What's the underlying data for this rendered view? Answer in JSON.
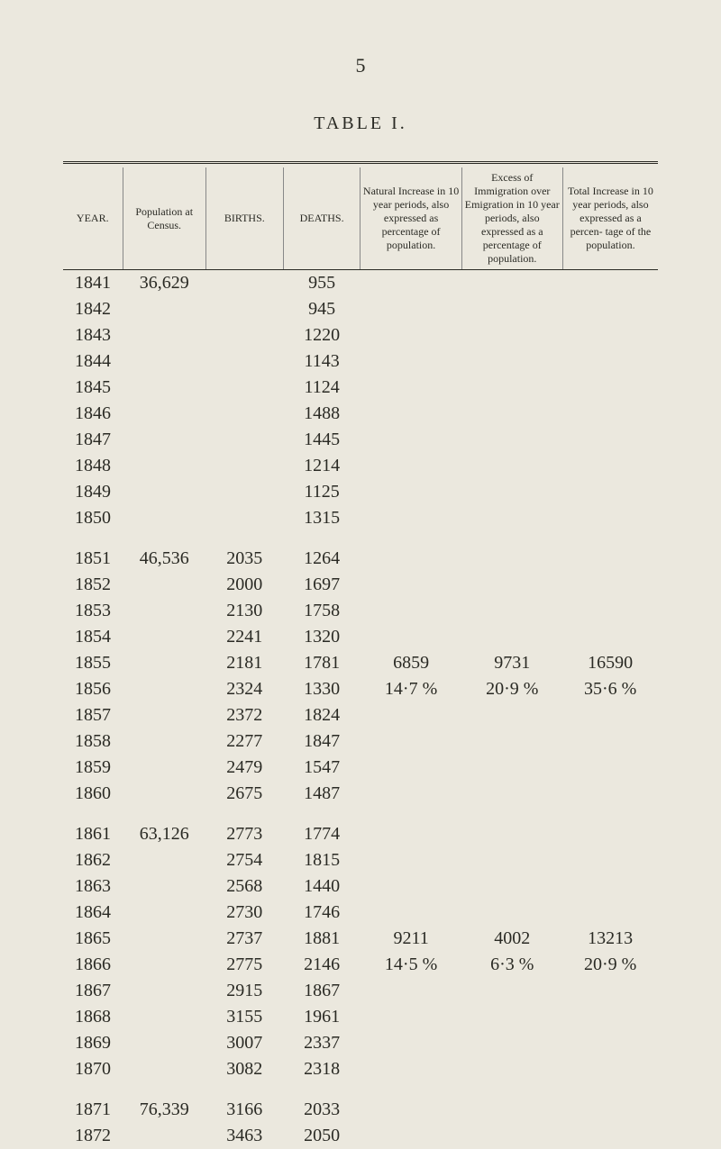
{
  "page_number": "5",
  "table_title": "TABLE I.",
  "headers": {
    "year": "YEAR.",
    "population": "Population at Census.",
    "births": "BIRTHS.",
    "deaths": "DEATHS.",
    "natural": "Natural Increase in 10 year periods, also expressed as percentage of population.",
    "excess": "Excess of Immigration over Emigration in 10 year periods, also expressed as a percentage of population.",
    "total": "Total Increase in 10 year periods, also expressed as a percen- tage of the population."
  },
  "blocks": [
    {
      "rows": [
        {
          "year": "1841",
          "pop": "36,629",
          "births": "",
          "deaths": "955"
        },
        {
          "year": "1842",
          "pop": "",
          "births": "",
          "deaths": "945"
        },
        {
          "year": "1843",
          "pop": "",
          "births": "",
          "deaths": "1220"
        },
        {
          "year": "1844",
          "pop": "",
          "births": "",
          "deaths": "1143"
        },
        {
          "year": "1845",
          "pop": "",
          "births": "",
          "deaths": "1124"
        },
        {
          "year": "1846",
          "pop": "",
          "births": "",
          "deaths": "1488"
        },
        {
          "year": "1847",
          "pop": "",
          "births": "",
          "deaths": "1445"
        },
        {
          "year": "1848",
          "pop": "",
          "births": "",
          "deaths": "1214"
        },
        {
          "year": "1849",
          "pop": "",
          "births": "",
          "deaths": "1125"
        },
        {
          "year": "1850",
          "pop": "",
          "births": "",
          "deaths": "1315"
        }
      ],
      "natural_val": "",
      "natural_pct": "",
      "excess_val": "",
      "excess_pct": "",
      "total_val": "",
      "total_pct": ""
    },
    {
      "rows": [
        {
          "year": "1851",
          "pop": "46,536",
          "births": "2035",
          "deaths": "1264"
        },
        {
          "year": "1852",
          "pop": "",
          "births": "2000",
          "deaths": "1697"
        },
        {
          "year": "1853",
          "pop": "",
          "births": "2130",
          "deaths": "1758"
        },
        {
          "year": "1854",
          "pop": "",
          "births": "2241",
          "deaths": "1320"
        },
        {
          "year": "1855",
          "pop": "",
          "births": "2181",
          "deaths": "1781"
        },
        {
          "year": "1856",
          "pop": "",
          "births": "2324",
          "deaths": "1330"
        },
        {
          "year": "1857",
          "pop": "",
          "births": "2372",
          "deaths": "1824"
        },
        {
          "year": "1858",
          "pop": "",
          "births": "2277",
          "deaths": "1847"
        },
        {
          "year": "1859",
          "pop": "",
          "births": "2479",
          "deaths": "1547"
        },
        {
          "year": "1860",
          "pop": "",
          "births": "2675",
          "deaths": "1487"
        }
      ],
      "natural_val": "6859",
      "natural_pct": "14·7 %",
      "excess_val": "9731",
      "excess_pct": "20·9 %",
      "total_val": "16590",
      "total_pct": "35·6 %"
    },
    {
      "rows": [
        {
          "year": "1861",
          "pop": "63,126",
          "births": "2773",
          "deaths": "1774"
        },
        {
          "year": "1862",
          "pop": "",
          "births": "2754",
          "deaths": "1815"
        },
        {
          "year": "1863",
          "pop": "",
          "births": "2568",
          "deaths": "1440"
        },
        {
          "year": "1864",
          "pop": "",
          "births": "2730",
          "deaths": "1746"
        },
        {
          "year": "1865",
          "pop": "",
          "births": "2737",
          "deaths": "1881"
        },
        {
          "year": "1866",
          "pop": "",
          "births": "2775",
          "deaths": "2146"
        },
        {
          "year": "1867",
          "pop": "",
          "births": "2915",
          "deaths": "1867"
        },
        {
          "year": "1868",
          "pop": "",
          "births": "3155",
          "deaths": "1961"
        },
        {
          "year": "1869",
          "pop": "",
          "births": "3007",
          "deaths": "2337"
        },
        {
          "year": "1870",
          "pop": "",
          "births": "3082",
          "deaths": "2318"
        }
      ],
      "natural_val": "9211",
      "natural_pct": "14·5 %",
      "excess_val": "4002",
      "excess_pct": "6·3 %",
      "total_val": "13213",
      "total_pct": "20·9 %"
    },
    {
      "rows": [
        {
          "year": "1871",
          "pop": "76,339",
          "births": "3166",
          "deaths": "2033"
        },
        {
          "year": "1872",
          "pop": "",
          "births": "3463",
          "deaths": "2050"
        }
      ],
      "natural_val": "",
      "natural_pct": "",
      "excess_val": "",
      "excess_pct": "",
      "total_val": "",
      "total_pct": ""
    }
  ]
}
